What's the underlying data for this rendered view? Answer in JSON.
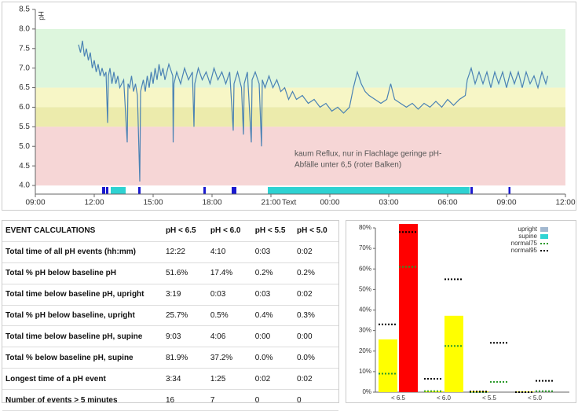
{
  "chart_data": [
    {
      "type": "line",
      "ylabel": "pH",
      "x": [
        11.2,
        11.3,
        11.4,
        11.5,
        11.6,
        11.7,
        11.8,
        11.9,
        12.0,
        12.1,
        12.2,
        12.3,
        12.4,
        12.5,
        12.6,
        12.68,
        12.72,
        12.8,
        12.9,
        13.0,
        13.1,
        13.2,
        13.3,
        13.5,
        13.68,
        13.72,
        13.8,
        13.9,
        14.0,
        14.1,
        14.2,
        14.32,
        14.36,
        14.5,
        14.6,
        14.7,
        14.8,
        14.9,
        15.0,
        15.1,
        15.2,
        15.3,
        15.4,
        15.5,
        15.6,
        15.8,
        16.0,
        16.02,
        16.06,
        16.2,
        16.4,
        16.6,
        16.8,
        17.0,
        17.08,
        17.12,
        17.3,
        17.5,
        17.7,
        17.9,
        18.1,
        18.3,
        18.5,
        18.7,
        18.9,
        19.08,
        19.12,
        19.3,
        19.5,
        19.6,
        19.64,
        19.8,
        20.0,
        20.04,
        20.2,
        20.4,
        20.52,
        20.56,
        20.7,
        20.9,
        21.1,
        21.3,
        21.5,
        21.7,
        21.9,
        22.1,
        22.3,
        22.6,
        22.9,
        23.2,
        23.5,
        23.8,
        24.1,
        24.4,
        24.7,
        25.0,
        25.2,
        25.4,
        25.6,
        25.8,
        26.0,
        26.3,
        26.6,
        26.9,
        27.1,
        27.3,
        27.6,
        27.9,
        28.2,
        28.5,
        28.8,
        29.1,
        29.4,
        29.7,
        30.0,
        30.3,
        30.6,
        30.9,
        31.0,
        31.2,
        31.4,
        31.6,
        31.8,
        32.0,
        32.2,
        32.4,
        32.6,
        32.8,
        33.0,
        33.2,
        33.4,
        33.6,
        33.8,
        34.0,
        34.2,
        34.4,
        34.6,
        34.8,
        35.0,
        35.1
      ],
      "series": [
        {
          "color": "#4a82b4",
          "values": [
            7.6,
            7.4,
            7.7,
            7.3,
            7.5,
            7.2,
            7.4,
            7.0,
            7.2,
            6.9,
            7.1,
            6.8,
            7.0,
            6.8,
            6.9,
            5.6,
            6.8,
            7.0,
            6.6,
            6.9,
            6.6,
            6.8,
            6.5,
            6.7,
            5.1,
            6.6,
            6.5,
            6.8,
            6.4,
            6.6,
            6.3,
            4.1,
            6.4,
            6.7,
            6.4,
            6.8,
            6.5,
            6.9,
            6.6,
            7.0,
            6.7,
            7.1,
            6.8,
            7.0,
            6.7,
            7.1,
            6.8,
            5.1,
            6.6,
            6.9,
            6.6,
            7.0,
            6.7,
            6.9,
            5.5,
            6.6,
            7.0,
            6.7,
            6.9,
            6.6,
            7.0,
            6.7,
            6.9,
            6.6,
            6.9,
            5.4,
            6.6,
            6.9,
            6.5,
            5.3,
            6.6,
            6.9,
            5.1,
            6.7,
            6.9,
            6.6,
            5.0,
            6.7,
            6.5,
            6.8,
            6.5,
            6.7,
            6.4,
            6.5,
            6.2,
            6.4,
            6.2,
            6.3,
            6.1,
            6.2,
            6.0,
            6.1,
            5.9,
            6.0,
            5.85,
            6.0,
            6.5,
            6.9,
            6.6,
            6.4,
            6.3,
            6.2,
            6.1,
            6.2,
            6.6,
            6.2,
            6.1,
            6.0,
            6.1,
            5.95,
            6.1,
            6.0,
            6.15,
            6.0,
            6.2,
            6.05,
            6.2,
            6.3,
            6.7,
            7.0,
            6.6,
            6.9,
            6.6,
            6.9,
            6.5,
            6.9,
            6.6,
            6.9,
            6.5,
            6.9,
            6.6,
            6.9,
            6.5,
            6.9,
            6.6,
            6.8,
            6.5,
            6.9,
            6.6,
            6.8
          ]
        }
      ],
      "xlim": [
        9,
        36
      ],
      "xticks": [
        {
          "value": 9,
          "label": "09:00"
        },
        {
          "value": 12,
          "label": "12:00"
        },
        {
          "value": 15,
          "label": "15:00"
        },
        {
          "value": 18,
          "label": "18:00"
        },
        {
          "value": 21,
          "label": "21:00"
        },
        {
          "value": 24,
          "label": "00:00"
        },
        {
          "value": 27,
          "label": "03:00"
        },
        {
          "value": 30,
          "label": "06:00"
        },
        {
          "value": 33,
          "label": "09:00"
        },
        {
          "value": 36,
          "label": "12:00"
        }
      ],
      "ylim": [
        4,
        8.5
      ],
      "yticks": [
        {
          "value": 4,
          "label": "4.0"
        },
        {
          "value": 4.5,
          "label": "4.5"
        },
        {
          "value": 5,
          "label": "5.0"
        },
        {
          "value": 5.5,
          "label": "5.5"
        },
        {
          "value": 6,
          "label": "6.0"
        },
        {
          "value": 6.5,
          "label": "6.5"
        },
        {
          "value": 7,
          "label": "7.0"
        },
        {
          "value": 7.5,
          "label": "7.5"
        },
        {
          "value": 8,
          "label": "8.0"
        },
        {
          "value": 8.5,
          "label": "8.5"
        }
      ],
      "bands": [
        {
          "from": 6.5,
          "to": 8,
          "color": "#ddf6dd"
        },
        {
          "from": 6,
          "to": 6.5,
          "color": "#f7f6c6"
        },
        {
          "from": 5.5,
          "to": 6,
          "color": "#ecebac"
        },
        {
          "from": 4,
          "to": 5.5,
          "color": "#f6d6d6"
        }
      ],
      "supine_periods": {
        "color": "#2ed2d2",
        "ranges": [
          [
            12.84,
            13.6
          ],
          [
            20.84,
            31.12
          ]
        ]
      },
      "events": {
        "color": "#1a1ad0",
        "ranges": [
          [
            12.4,
            12.56
          ],
          [
            12.6,
            12.72
          ],
          [
            14.24,
            14.36
          ],
          [
            17.56,
            17.68
          ],
          [
            19.0,
            19.24
          ],
          [
            31.16,
            31.28
          ],
          [
            33.1,
            33.2
          ]
        ]
      },
      "timeline_label": "Text",
      "annotation": [
        "kaum Reflux, nur in Flachlage geringe pH-",
        "Abfälle unter 6,5 (roter Balken)"
      ]
    },
    {
      "type": "bar",
      "categories": [
        "< 6.5",
        "< 6.0",
        "< 5.5",
        "< 5.0"
      ],
      "ylim": [
        0,
        80
      ],
      "yticks": [
        {
          "value": 0,
          "label": "0%"
        },
        {
          "value": 10,
          "label": "10%"
        },
        {
          "value": 20,
          "label": "20%"
        },
        {
          "value": 30,
          "label": "30%"
        },
        {
          "value": 40,
          "label": "40%"
        },
        {
          "value": 50,
          "label": "50%"
        },
        {
          "value": 60,
          "label": "60%"
        },
        {
          "value": 70,
          "label": "70%"
        },
        {
          "value": 80,
          "label": "80%"
        }
      ],
      "series": [
        {
          "name": "upright",
          "color": "#a2b8d0",
          "values": [
            25.7,
            0.5,
            0.4,
            0.3
          ],
          "bar_colors": [
            "#ffff00",
            "#ffff00",
            "#ffff00",
            "#ffff00"
          ]
        },
        {
          "name": "supine",
          "color": "#30d4d4",
          "values": [
            81.9,
            37.2,
            0.0,
            0.0
          ],
          "bar_colors": [
            "#ff0000",
            "#ffff00",
            "#ffff00",
            "#ffff00"
          ]
        }
      ],
      "reference_lines": [
        {
          "name": "normal75",
          "color": "#2a9a2a",
          "values": [
            [
              9,
              61
            ],
            [
              0.5,
              22.5
            ],
            [
              0,
              5
            ],
            [
              0,
              0.5
            ]
          ]
        },
        {
          "name": "normal95",
          "color": "#000000",
          "values": [
            [
              33,
              78
            ],
            [
              6.5,
              55
            ],
            [
              0.3,
              24
            ],
            [
              0,
              5.5
            ]
          ]
        }
      ]
    }
  ],
  "table": {
    "header": [
      "EVENT CALCULATIONS",
      "pH < 6.5",
      "pH < 6.0",
      "pH < 5.5",
      "pH < 5.0"
    ],
    "rows": [
      [
        "Total time of all pH events (hh:mm)",
        "12:22",
        "4:10",
        "0:03",
        "0:02"
      ],
      [
        "Total % pH below baseline pH",
        "51.6%",
        "17.4%",
        "0.2%",
        "0.2%"
      ],
      [
        "Total time below baseline pH, upright",
        "3:19",
        "0:03",
        "0:03",
        "0:02"
      ],
      [
        "Total % pH below baseline, upright",
        "25.7%",
        "0.5%",
        "0.4%",
        "0.3%"
      ],
      [
        "Total time below baseline pH, supine",
        "9:03",
        "4:06",
        "0:00",
        "0:00"
      ],
      [
        "Total % below baseline pH, supine",
        "81.9%",
        "37.2%",
        "0.0%",
        "0.0%"
      ],
      [
        "Longest time of a pH event",
        "3:34",
        "1:25",
        "0:02",
        "0:02"
      ],
      [
        "Number of events > 5 minutes",
        "16",
        "7",
        "0",
        "0"
      ]
    ]
  }
}
